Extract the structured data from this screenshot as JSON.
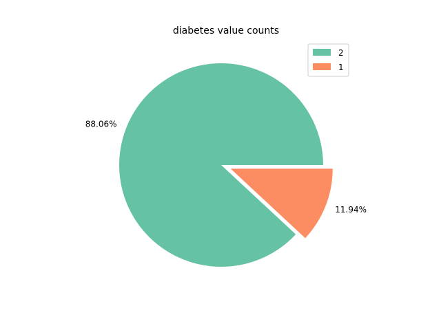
{
  "chart_data": {
    "type": "pie",
    "title": "diabetes value counts",
    "slices": [
      {
        "label": "2",
        "value": 88.06,
        "pct_label": "88.06%",
        "color": "#66c2a5",
        "explode": 0.0
      },
      {
        "label": "1",
        "value": 11.94,
        "pct_label": "11.94%",
        "color": "#fc8d62",
        "explode": 0.1
      }
    ],
    "legend": {
      "position": "top-right",
      "entries": [
        "2",
        "1"
      ]
    },
    "start_angle_deg": 0,
    "direction": "counterclockwise"
  }
}
